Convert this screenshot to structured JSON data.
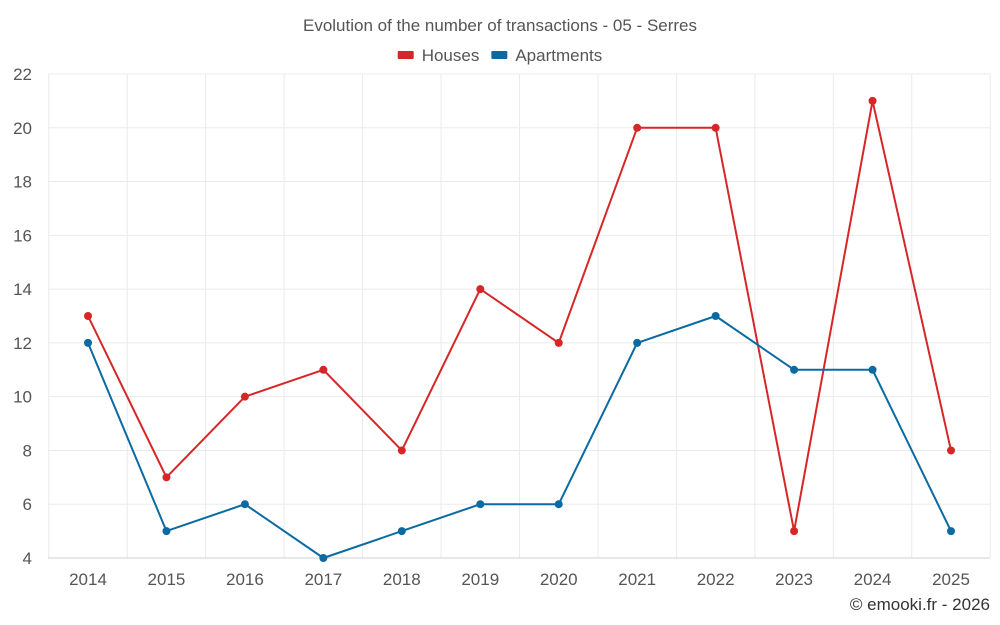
{
  "chart_data": {
    "type": "line",
    "title": "Evolution of the number of transactions - 05 - Serres",
    "categories": [
      "2014",
      "2015",
      "2016",
      "2017",
      "2018",
      "2019",
      "2020",
      "2021",
      "2022",
      "2023",
      "2024",
      "2025"
    ],
    "series": [
      {
        "name": "Houses",
        "color": "#d62728",
        "values": [
          13,
          7,
          10,
          11,
          8,
          14,
          12,
          20,
          20,
          5,
          21,
          8
        ]
      },
      {
        "name": "Apartments",
        "color": "#0a6aa1",
        "values": [
          12,
          5,
          6,
          4,
          5,
          6,
          6,
          12,
          13,
          11,
          11,
          5
        ]
      }
    ],
    "ylim": [
      4,
      22
    ],
    "yticks": [
      "4",
      "6",
      "8",
      "10",
      "12",
      "14",
      "16",
      "18",
      "20",
      "22"
    ],
    "grid": true,
    "legend_position": "top-center",
    "xlabel": "",
    "ylabel": ""
  },
  "credit": "© emooki.fr - 2026"
}
